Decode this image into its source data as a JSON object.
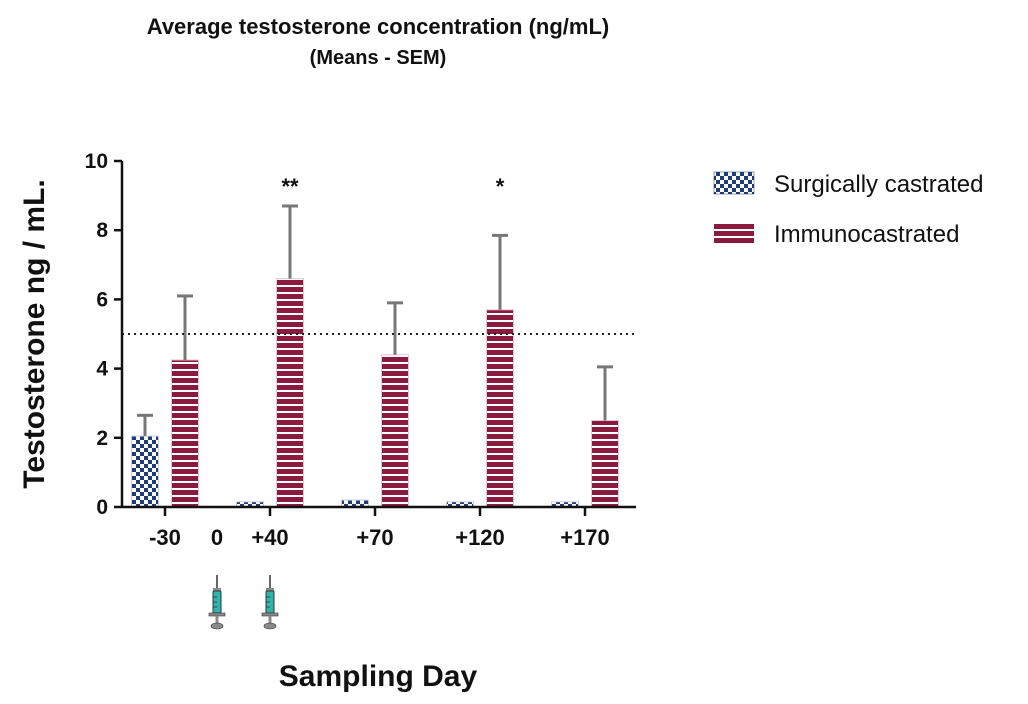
{
  "chart_data": {
    "type": "bar",
    "title": "Average testosterone concentration (ng/mL)",
    "subtitle": "(Means - SEM)",
    "xlabel": "Sampling Day",
    "ylabel": "Testosterone ng / mL.",
    "ylim": [
      0,
      10
    ],
    "yticks": [
      "0",
      "2",
      "4",
      "6",
      "8",
      "10"
    ],
    "categories": [
      "-30",
      "+40",
      "+70",
      "+120",
      "+170"
    ],
    "extra_x_label": "0",
    "injection_days": [
      "0",
      "+40"
    ],
    "reference_line": 5,
    "series": [
      {
        "name": "Surgically castrated",
        "pattern": "checker",
        "color": "#1f3b7a",
        "values": [
          2.05,
          0.15,
          0.2,
          0.15,
          0.15
        ],
        "errors": [
          0.6,
          0,
          0,
          0,
          0
        ]
      },
      {
        "name": "Immunocastrated",
        "pattern": "stripes",
        "color": "#8b1a3f",
        "values": [
          4.25,
          6.6,
          4.4,
          5.7,
          2.5
        ],
        "errors": [
          1.85,
          2.1,
          1.5,
          2.15,
          1.55
        ]
      }
    ],
    "annotations": [
      {
        "category": "+40",
        "text": "**"
      },
      {
        "category": "+120",
        "text": "*"
      }
    ],
    "legend_position": "right"
  }
}
